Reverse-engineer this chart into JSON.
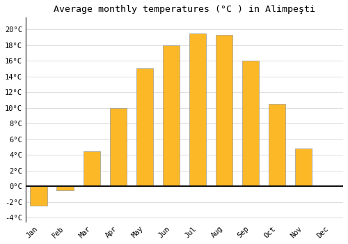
{
  "months": [
    "Jan",
    "Feb",
    "Mar",
    "Apr",
    "May",
    "Jun",
    "Jul",
    "Aug",
    "Sep",
    "Oct",
    "Nov",
    "Dec"
  ],
  "temperatures": [
    -2.5,
    -0.5,
    4.5,
    10.0,
    15.0,
    18.0,
    19.5,
    19.3,
    16.0,
    10.5,
    4.8,
    0.0
  ],
  "bar_color": "#FDB827",
  "bar_edge_color": "#999999",
  "background_color": "#FFFFFF",
  "plot_bg_color": "#FFFFFF",
  "title": "Average monthly temperatures (°C ) in Alimpeşti",
  "title_fontsize": 9.5,
  "ylim": [
    -4.5,
    21.5
  ],
  "yticks": [
    -4,
    -2,
    0,
    2,
    4,
    6,
    8,
    10,
    12,
    14,
    16,
    18,
    20
  ],
  "zero_line_color": "#111111",
  "grid_color": "#dddddd",
  "spine_color": "#555555",
  "font_family": "monospace",
  "tick_fontsize": 7.5
}
